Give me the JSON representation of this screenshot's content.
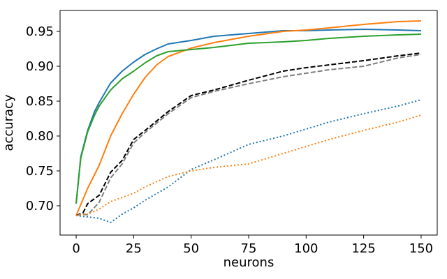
{
  "chart_data": {
    "type": "line",
    "title": "",
    "xlabel": "neurons",
    "ylabel": "accuracy",
    "xlim": [
      -7,
      157
    ],
    "ylim": [
      0.658,
      0.98
    ],
    "xticks": [
      0,
      25,
      50,
      75,
      100,
      125,
      150
    ],
    "xtick_labels": [
      "0",
      "25",
      "50",
      "75",
      "100",
      "125",
      "150"
    ],
    "yticks": [
      0.7,
      0.75,
      0.8,
      0.85,
      0.9,
      0.95
    ],
    "ytick_labels": [
      "0.70",
      "0.75",
      "0.80",
      "0.85",
      "0.90",
      "0.95"
    ],
    "grid": false,
    "legend": false,
    "series": [
      {
        "color": "#1f77b4",
        "dash": "solid",
        "x": [
          0,
          2,
          5,
          8,
          10,
          15,
          20,
          25,
          30,
          35,
          40,
          50,
          60,
          75,
          90,
          100,
          110,
          125,
          140,
          150
        ],
        "y": [
          0.703,
          0.77,
          0.808,
          0.835,
          0.848,
          0.876,
          0.893,
          0.906,
          0.917,
          0.925,
          0.932,
          0.937,
          0.943,
          0.947,
          0.951,
          0.951,
          0.952,
          0.953,
          0.952,
          0.951
        ]
      },
      {
        "color": "#ff7f0e",
        "dash": "solid",
        "x": [
          0,
          5,
          10,
          15,
          20,
          25,
          30,
          35,
          40,
          50,
          60,
          75,
          90,
          100,
          110,
          125,
          140,
          150
        ],
        "y": [
          0.686,
          0.725,
          0.758,
          0.8,
          0.832,
          0.86,
          0.884,
          0.902,
          0.914,
          0.926,
          0.934,
          0.943,
          0.95,
          0.952,
          0.955,
          0.96,
          0.964,
          0.965
        ]
      },
      {
        "color": "#2ca02c",
        "dash": "solid",
        "x": [
          0,
          2,
          5,
          8,
          10,
          15,
          20,
          25,
          30,
          35,
          40,
          50,
          60,
          75,
          90,
          100,
          110,
          125,
          140,
          150
        ],
        "y": [
          0.703,
          0.768,
          0.806,
          0.83,
          0.843,
          0.866,
          0.882,
          0.893,
          0.905,
          0.915,
          0.921,
          0.924,
          0.927,
          0.933,
          0.935,
          0.937,
          0.94,
          0.943,
          0.945,
          0.946
        ]
      },
      {
        "color": "#000000",
        "dash": "dashed",
        "x": [
          0,
          3,
          5,
          10,
          15,
          20,
          25,
          30,
          40,
          50,
          60,
          75,
          90,
          100,
          110,
          125,
          140,
          150
        ],
        "y": [
          0.686,
          0.69,
          0.703,
          0.715,
          0.748,
          0.765,
          0.795,
          0.808,
          0.835,
          0.858,
          0.866,
          0.88,
          0.893,
          0.898,
          0.902,
          0.908,
          0.915,
          0.919
        ]
      },
      {
        "color": "#7f7f7f",
        "dash": "dashed",
        "x": [
          0,
          3,
          5,
          10,
          15,
          20,
          25,
          30,
          40,
          50,
          60,
          75,
          90,
          100,
          110,
          125,
          140,
          150
        ],
        "y": [
          0.686,
          0.688,
          0.687,
          0.705,
          0.74,
          0.76,
          0.79,
          0.805,
          0.832,
          0.855,
          0.864,
          0.875,
          0.885,
          0.89,
          0.895,
          0.9,
          0.912,
          0.917
        ]
      },
      {
        "color": "#1f77b4",
        "dash": "dotted",
        "x": [
          0,
          5,
          10,
          15,
          20,
          25,
          30,
          40,
          50,
          60,
          75,
          90,
          100,
          110,
          125,
          140,
          150
        ],
        "y": [
          0.686,
          0.684,
          0.682,
          0.676,
          0.688,
          0.697,
          0.708,
          0.727,
          0.752,
          0.766,
          0.788,
          0.8,
          0.81,
          0.82,
          0.832,
          0.843,
          0.852
        ]
      },
      {
        "color": "#ff7f0e",
        "dash": "dotted",
        "x": [
          0,
          5,
          10,
          15,
          20,
          25,
          30,
          40,
          50,
          60,
          75,
          90,
          100,
          110,
          125,
          140,
          150
        ],
        "y": [
          0.686,
          0.688,
          0.695,
          0.706,
          0.712,
          0.718,
          0.727,
          0.742,
          0.75,
          0.755,
          0.76,
          0.775,
          0.785,
          0.795,
          0.808,
          0.82,
          0.83
        ]
      }
    ]
  }
}
